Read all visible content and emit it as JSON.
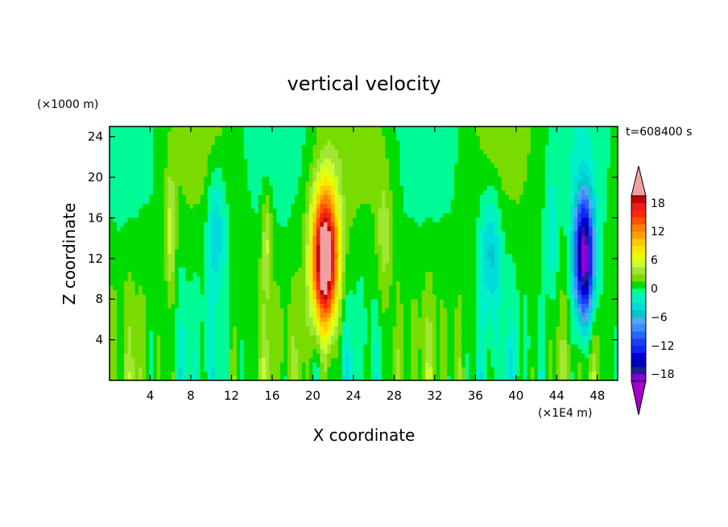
{
  "chart_data": {
    "type": "heatmap",
    "title": "vertical velocity",
    "xlabel": "X coordinate",
    "ylabel": "Z coordinate",
    "x_unit": "(×1E4 m)",
    "y_unit": "(×1000 m)",
    "time_label": "t=608400 s",
    "xlim": [
      0,
      50
    ],
    "ylim": [
      0,
      25
    ],
    "x_ticks": [
      4,
      8,
      12,
      16,
      20,
      24,
      28,
      32,
      36,
      40,
      44,
      48
    ],
    "y_ticks": [
      4,
      8,
      12,
      16,
      20,
      24
    ],
    "colorbar": {
      "levels": [
        -21,
        -19.5,
        -18,
        -16.5,
        -15,
        -13.5,
        -12,
        -10.5,
        -9,
        -7.5,
        -6,
        -4.5,
        -3,
        -1.5,
        0,
        1.5,
        3,
        4.5,
        6,
        7.5,
        9,
        10.5,
        12,
        13.5,
        15,
        16.5,
        18,
        19.5,
        21
      ],
      "tick_values": [
        -18,
        -12,
        -6,
        0,
        6,
        12,
        18
      ],
      "tick_labels": [
        "−18",
        "−12",
        "−6",
        "0",
        "6",
        "12",
        "18"
      ]
    },
    "features": [
      {
        "name": "updraft core",
        "x": 21.2,
        "z_center": 12,
        "z_half": 11,
        "x_width": 1.3,
        "w": 24
      },
      {
        "name": "downdraft core",
        "x": 46.7,
        "z_center": 12,
        "z_half": 10.5,
        "x_width": 1.0,
        "w": -21
      }
    ]
  }
}
